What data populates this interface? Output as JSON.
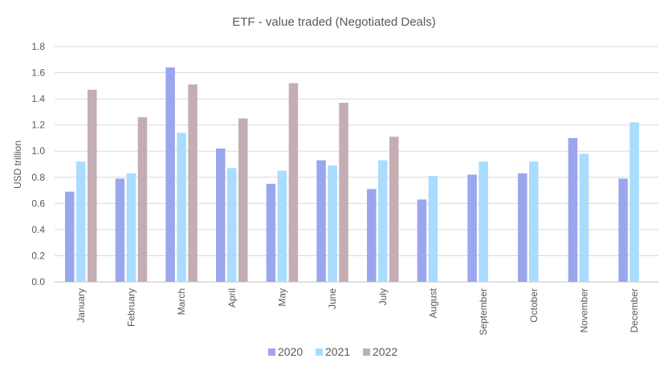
{
  "chart_data": {
    "type": "bar",
    "title": "ETF - value traded (Negotiated Deals)",
    "xlabel": "",
    "ylabel": "USD trillion",
    "ylim": [
      0,
      1.8
    ],
    "yticks": [
      "0.0",
      "0.2",
      "0.4",
      "0.6",
      "0.8",
      "1.0",
      "1.2",
      "1.4",
      "1.6",
      "1.8"
    ],
    "grid": true,
    "legend_position": "bottom",
    "categories": [
      "January",
      "February",
      "March",
      "April",
      "May",
      "June",
      "July",
      "August",
      "September",
      "October",
      "November",
      "December"
    ],
    "series": [
      {
        "name": "2020",
        "color": "#9aa6ee",
        "values": [
          0.69,
          0.79,
          1.64,
          1.02,
          0.75,
          0.93,
          0.71,
          0.63,
          0.82,
          0.83,
          1.1,
          0.79
        ]
      },
      {
        "name": "2021",
        "color": "#a9dcff",
        "values": [
          0.92,
          0.83,
          1.14,
          0.87,
          0.85,
          0.89,
          0.93,
          0.81,
          0.92,
          0.92,
          0.98,
          1.22
        ]
      },
      {
        "name": "2022",
        "color": "#c4adb3",
        "values": [
          1.47,
          1.26,
          1.51,
          1.25,
          1.52,
          1.37,
          1.11,
          null,
          null,
          null,
          null,
          null
        ]
      }
    ]
  }
}
